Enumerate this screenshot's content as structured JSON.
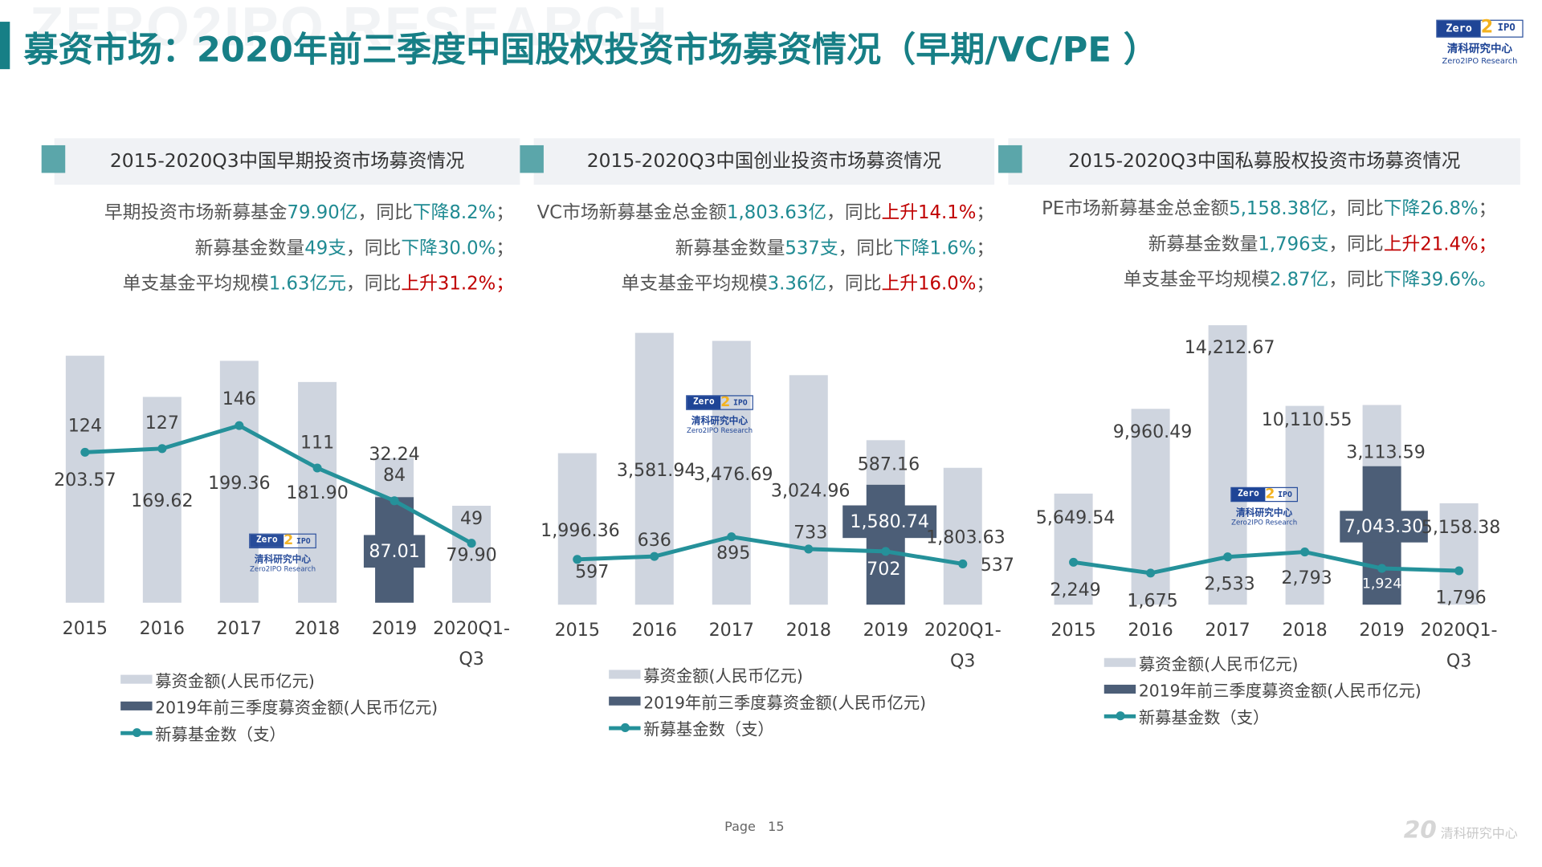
{
  "header": {
    "watermark": "ZERO2IPO RESEARCH",
    "title": "募资市场：2020年前三季度中国股权投资市场募资情况（早期/VC/PE ）",
    "logo": {
      "mark_zero": "Zero",
      "mark_two": "2",
      "mark_ipo": "IPO",
      "cn": "清科研究中心",
      "en": "Zero2IPO Research"
    }
  },
  "colors": {
    "accent": "#177f86",
    "bar_light": "#cfd5df",
    "bar_dark": "#4c5e77",
    "line": "#25919a",
    "up": "#c00000",
    "down_text": "#1f8a92"
  },
  "legend": {
    "light": "募资金额(人民币亿元)",
    "dark": "2019年前三季度募资金额(人民币亿元)",
    "line": "新募基金数（支）"
  },
  "panels": [
    {
      "title": "2015-2020Q3中国早期投资市场募资情况",
      "summary": [
        [
          {
            "t": "早期投资市场新募基金",
            "c": "n"
          },
          {
            "t": "79.90亿",
            "c": "t"
          },
          {
            "t": "，同比",
            "c": "n"
          },
          {
            "t": "下降8.2%",
            "c": "t"
          },
          {
            "t": "；",
            "c": "n"
          }
        ],
        [
          {
            "t": "新募基金数量",
            "c": "n"
          },
          {
            "t": "49支",
            "c": "t"
          },
          {
            "t": "，同比",
            "c": "n"
          },
          {
            "t": "下降30.0%",
            "c": "t"
          },
          {
            "t": "；",
            "c": "n"
          }
        ],
        [
          {
            "t": "单支基金平均规模",
            "c": "n"
          },
          {
            "t": "1.63亿元",
            "c": "t"
          },
          {
            "t": "，同比",
            "c": "n"
          },
          {
            "t": "上升31.2%",
            "c": "r"
          },
          {
            "t": "；",
            "c": "r"
          }
        ]
      ]
    },
    {
      "title": "2015-2020Q3中国创业投资市场募资情况",
      "summary": [
        [
          {
            "t": "VC市场新募基金总金额",
            "c": "n"
          },
          {
            "t": "1,803.63亿",
            "c": "t"
          },
          {
            "t": "，同比",
            "c": "n"
          },
          {
            "t": "上升14.1%",
            "c": "r"
          },
          {
            "t": "；",
            "c": "n"
          }
        ],
        [
          {
            "t": "新募基金数量",
            "c": "n"
          },
          {
            "t": "537支",
            "c": "t"
          },
          {
            "t": "，同比",
            "c": "n"
          },
          {
            "t": "下降1.6%",
            "c": "t"
          },
          {
            "t": "；",
            "c": "n"
          }
        ],
        [
          {
            "t": "单支基金平均规模",
            "c": "n"
          },
          {
            "t": "3.36亿",
            "c": "t"
          },
          {
            "t": "，同比",
            "c": "n"
          },
          {
            "t": "上升16.0%",
            "c": "r"
          },
          {
            "t": "；",
            "c": "n"
          }
        ]
      ]
    },
    {
      "title": "2015-2020Q3中国私募股权投资市场募资情况",
      "summary": [
        [
          {
            "t": "PE市场新募基金总金额",
            "c": "n"
          },
          {
            "t": "5,158.38亿",
            "c": "t"
          },
          {
            "t": "，同比",
            "c": "n"
          },
          {
            "t": "下降26.8%",
            "c": "t"
          },
          {
            "t": "；",
            "c": "n"
          }
        ],
        [
          {
            "t": "新募基金数量",
            "c": "n"
          },
          {
            "t": "1,796支",
            "c": "t"
          },
          {
            "t": "，同比",
            "c": "n"
          },
          {
            "t": "上升21.4%",
            "c": "r"
          },
          {
            "t": "；",
            "c": "r"
          }
        ],
        [
          {
            "t": "单支基金平均规模",
            "c": "n"
          },
          {
            "t": "2.87亿",
            "c": "t"
          },
          {
            "t": "，同比",
            "c": "n"
          },
          {
            "t": "下降39.6%。",
            "c": "t"
          }
        ]
      ]
    }
  ],
  "chart_data": [
    {
      "type": "bar",
      "categories": [
        "2015",
        "2016",
        "2017",
        "2018",
        "2019",
        "2020Q1-Q3"
      ],
      "category_labels": [
        [
          "2015"
        ],
        [
          "2016"
        ],
        [
          "2017"
        ],
        [
          "2018"
        ],
        [
          "2019"
        ],
        [
          "2020Q1-",
          "Q3"
        ]
      ],
      "series": [
        {
          "name": "募资金额(人民币亿元)",
          "type": "bar",
          "values": [
            203.57,
            169.62,
            199.36,
            181.9,
            32.24,
            79.9
          ],
          "labels": [
            "203.57",
            "169.62",
            "199.36",
            "181.90",
            "32.24",
            "79.90"
          ]
        },
        {
          "name": "2019年前三季度募资金额(人民币亿元)",
          "type": "bar",
          "stacked_under": "募资金额(人民币亿元)",
          "values": [
            null,
            null,
            null,
            null,
            87.01,
            null
          ],
          "labels": [
            "",
            "",
            "",
            "",
            "87.01",
            ""
          ]
        },
        {
          "name": "新募基金数（支）",
          "type": "line",
          "values": [
            124,
            127,
            146,
            111,
            84,
            49
          ],
          "labels": [
            "124",
            "127",
            "146",
            "111",
            "84",
            "49"
          ]
        }
      ],
      "grid": false,
      "legend": "bottom"
    },
    {
      "type": "bar",
      "categories": [
        "2015",
        "2016",
        "2017",
        "2018",
        "2019",
        "2020Q1-Q3"
      ],
      "category_labels": [
        [
          "2015"
        ],
        [
          "2016"
        ],
        [
          "2017"
        ],
        [
          "2018"
        ],
        [
          "2019"
        ],
        [
          "2020Q1-",
          "Q3"
        ]
      ],
      "series": [
        {
          "name": "募资金额(人民币亿元)",
          "type": "bar",
          "values": [
            1996.36,
            3581.94,
            3476.69,
            3024.96,
            587.16,
            1803.63
          ],
          "labels": [
            "1,996.36",
            "3,581.94",
            "3,476.69",
            "3,024.96",
            "587.16",
            "1,803.63"
          ]
        },
        {
          "name": "2019年前三季度募资金额(人民币亿元)",
          "type": "bar",
          "stacked_under": "募资金额(人民币亿元)",
          "values": [
            null,
            null,
            null,
            null,
            1580.74,
            null
          ],
          "labels": [
            "",
            "",
            "",
            "",
            "1,580.74",
            ""
          ]
        },
        {
          "name": "新募基金数（支）",
          "type": "line",
          "values": [
            597,
            636,
            895,
            733,
            702,
            537
          ],
          "labels": [
            "597",
            "636",
            "895",
            "733",
            "702",
            "537"
          ]
        }
      ],
      "grid": false,
      "legend": "bottom"
    },
    {
      "type": "bar",
      "categories": [
        "2015",
        "2016",
        "2017",
        "2018",
        "2019",
        "2020Q1-Q3"
      ],
      "category_labels": [
        [
          "2015"
        ],
        [
          "2016"
        ],
        [
          "2017"
        ],
        [
          "2018"
        ],
        [
          "2019"
        ],
        [
          "2020Q1-",
          "Q3"
        ]
      ],
      "series": [
        {
          "name": "募资金额(人民币亿元)",
          "type": "bar",
          "values": [
            5649.54,
            9960.49,
            14212.67,
            10110.55,
            3113.59,
            5158.38
          ],
          "labels": [
            "5,649.54",
            "9,960.49",
            "14,212.67",
            "10,110.55",
            "3,113.59",
            "5,158.38"
          ]
        },
        {
          "name": "2019年前三季度募资金额(人民币亿元)",
          "type": "bar",
          "stacked_under": "募资金额(人民币亿元)",
          "values": [
            null,
            null,
            null,
            null,
            7043.3,
            null
          ],
          "labels": [
            "",
            "",
            "",
            "",
            "7,043.30",
            ""
          ]
        },
        {
          "name": "新募基金数（支）",
          "type": "line",
          "values": [
            2249,
            1675,
            2533,
            2793,
            1924,
            1796
          ],
          "labels": [
            "2,249",
            "1,675",
            "2,533",
            "2,793",
            "1,924",
            "1,796"
          ]
        }
      ],
      "grid": false,
      "legend": "bottom"
    }
  ],
  "footer": {
    "page_label": "Page",
    "page_number": "15",
    "brand_mark": "20",
    "brand_text": "清科研究中心"
  }
}
